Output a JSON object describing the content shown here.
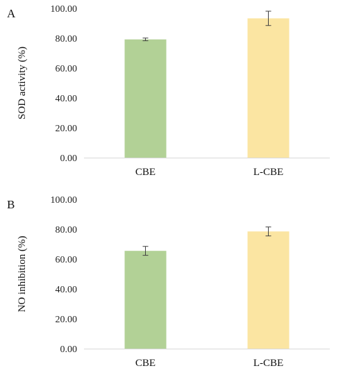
{
  "chart_data": [
    {
      "panel_label": "A",
      "type": "bar",
      "categories": [
        "CBE",
        "L-CBE"
      ],
      "values": [
        79.2,
        93.3
      ],
      "errors": [
        0.9,
        4.8
      ],
      "colors": [
        "#b2d196",
        "#fbe5a2"
      ],
      "xlabel": "",
      "ylabel": "SOD activity (%)",
      "ylim": [
        0,
        100
      ],
      "yticks": [
        "0.00",
        "20.00",
        "40.00",
        "60.00",
        "80.00",
        "100.00"
      ],
      "grid": false,
      "legend": "none"
    },
    {
      "panel_label": "B",
      "type": "bar",
      "categories": [
        "CBE",
        "L-CBE"
      ],
      "values": [
        65.5,
        78.5
      ],
      "errors": [
        3.0,
        3.0
      ],
      "colors": [
        "#b2d196",
        "#fbe5a2"
      ],
      "xlabel": "",
      "ylabel": "NO inhibition (%)",
      "ylim": [
        0,
        100
      ],
      "yticks": [
        "0.00",
        "20.00",
        "40.00",
        "60.00",
        "80.00",
        "100.00"
      ],
      "grid": false,
      "legend": "none"
    }
  ]
}
